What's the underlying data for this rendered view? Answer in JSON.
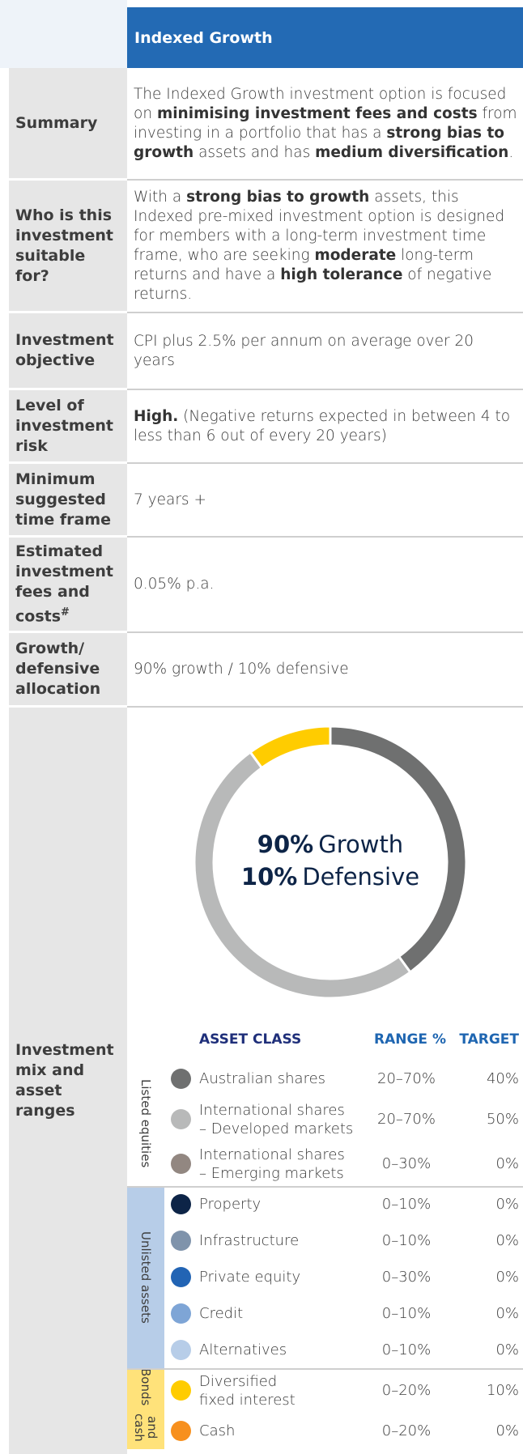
{
  "header": {
    "title": "Indexed Growth"
  },
  "rows": [
    {
      "label": "Summary",
      "content": [
        {
          "text": "The Indexed Growth investment option is focused on "
        },
        {
          "text": "minimising investment fees and costs",
          "bold": true
        },
        {
          "text": " from investing in a portfolio that has a "
        },
        {
          "text": "strong bias to growth",
          "bold": true
        },
        {
          "text": " assets and has "
        },
        {
          "text": "medium diversification",
          "bold": true
        },
        {
          "text": "."
        }
      ]
    },
    {
      "label": "Who is this investment suitable for?",
      "content": [
        {
          "text": "With a "
        },
        {
          "text": "strong bias to growth",
          "bold": true
        },
        {
          "text": " assets, this Indexed pre-mixed investment option is designed for members with a long-term investment time frame, who are seeking "
        },
        {
          "text": "moderate",
          "bold": true
        },
        {
          "text": " long-term returns and have a "
        },
        {
          "text": "high tolerance",
          "bold": true
        },
        {
          "text": " of negative returns."
        }
      ]
    },
    {
      "label": "Investment objective",
      "content": [
        {
          "text": "CPI plus 2.5% per annum on average over 20 years"
        }
      ]
    },
    {
      "label": "Level of investment risk",
      "content": [
        {
          "text": "High.",
          "bold": true
        },
        {
          "text": " (Negative returns expected in between 4 to less than 6 out of every 20 years)"
        }
      ]
    },
    {
      "label": "Minimum suggested time frame",
      "content": [
        {
          "text": "7 years +"
        }
      ]
    },
    {
      "label": "Estimated investment fees and costs",
      "label_sup": "#",
      "content": [
        {
          "text": "0.05% p.a."
        }
      ]
    },
    {
      "label": "Growth/ defensive allocation",
      "content": [
        {
          "text": "90% growth / 10% defensive"
        }
      ]
    }
  ],
  "mix": {
    "label": "Investment mix and asset ranges",
    "donut": {
      "center": [
        {
          "value": "90%",
          "text": "Growth"
        },
        {
          "value": "10%",
          "text": "Defensive"
        }
      ],
      "segments": [
        {
          "value": 40,
          "color": "#6f7070"
        },
        {
          "value": 50,
          "color": "#b8b9b9"
        },
        {
          "value": 10,
          "color": "#ffcc00"
        }
      ]
    },
    "table": {
      "columns": [
        "ASSET CLASS",
        "RANGE %",
        "TARGET"
      ],
      "groups": [
        {
          "label": [
            "Listed equities"
          ],
          "background": "#ffffff",
          "assets": [
            {
              "name": [
                "Australian shares"
              ],
              "color": "#6f7070",
              "range": "20–70%",
              "target": "40%"
            },
            {
              "name": [
                "International shares",
                "– Developed markets"
              ],
              "color": "#b8b9b9",
              "range": "20–70%",
              "target": "50%"
            },
            {
              "name": [
                "International shares",
                "– Emerging markets"
              ],
              "color": "#928781",
              "range": "0–30%",
              "target": "0%"
            }
          ]
        },
        {
          "label": [
            "Unlisted assets"
          ],
          "background": "#b7cde8",
          "assets": [
            {
              "name": [
                "Property"
              ],
              "color": "#0d2447",
              "range": "0–10%",
              "target": "0%"
            },
            {
              "name": [
                "Infrastructure"
              ],
              "color": "#7f93ab",
              "range": "0–10%",
              "target": "0%"
            },
            {
              "name": [
                "Private equity"
              ],
              "color": "#2264b4",
              "range": "0–30%",
              "target": "0%"
            },
            {
              "name": [
                "Credit"
              ],
              "color": "#7ea5d6",
              "range": "0–10%",
              "target": "0%"
            },
            {
              "name": [
                "Alternatives"
              ],
              "color": "#b7cde8",
              "range": "0–10%",
              "target": "0%"
            }
          ]
        },
        {
          "label": [
            "Bonds",
            "and cash"
          ],
          "background": "#ffe27a",
          "assets": [
            {
              "name": [
                "Diversified",
                "fixed interest"
              ],
              "color": "#ffcc00",
              "range": "0–20%",
              "target": "10%"
            },
            {
              "name": [
                "Cash"
              ],
              "color": "#f7901e",
              "range": "0–20%",
              "target": "0%"
            }
          ]
        }
      ]
    }
  }
}
